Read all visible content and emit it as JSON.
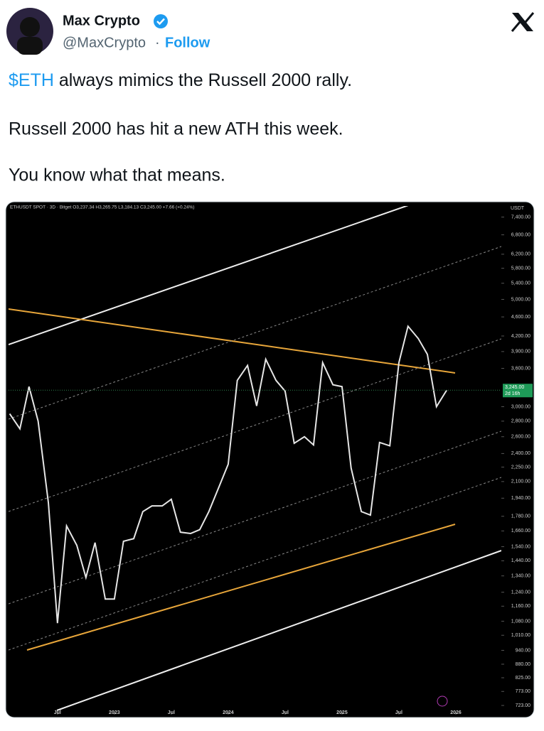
{
  "tweet": {
    "author_name": "Max Crypto",
    "handle": "@MaxCrypto",
    "separator": "·",
    "follow": "Follow",
    "text": [
      {
        "cashtag": "$ETH",
        "rest": "always mimics the Russell 2000 rally."
      },
      {
        "rest": "Russell 2000 has hit a new ATH this week."
      },
      {
        "rest": "You know what that means."
      }
    ]
  },
  "chart_data": {
    "type": "line",
    "title": "ETHUSDT SPOT · 3D · Bitget O3,237.34 H3,265.75 L3,184.13 C3,245.00 +7.66 (+0.24%)",
    "y_unit": "USDT",
    "log_scale": true,
    "color": "#e6e6e6",
    "x": [
      2022.08,
      2022.17,
      2022.25,
      2022.33,
      2022.42,
      2022.5,
      2022.58,
      2022.67,
      2022.75,
      2022.83,
      2022.92,
      2023.0,
      2023.08,
      2023.17,
      2023.25,
      2023.33,
      2023.42,
      2023.5,
      2023.58,
      2023.67,
      2023.75,
      2023.83,
      2023.92,
      2024.0,
      2024.08,
      2024.17,
      2024.25,
      2024.33,
      2024.42,
      2024.5,
      2024.58,
      2024.67,
      2024.75,
      2024.83,
      2024.92,
      2025.0,
      2025.08,
      2025.17,
      2025.25,
      2025.33,
      2025.42,
      2025.5,
      2025.58,
      2025.67,
      2025.75,
      2025.83,
      2025.92
    ],
    "values": [
      2900,
      2700,
      3300,
      2800,
      1900,
      1070,
      1700,
      1550,
      1330,
      1570,
      1200,
      1200,
      1580,
      1600,
      1820,
      1870,
      1870,
      1930,
      1650,
      1640,
      1670,
      1820,
      2050,
      2280,
      3400,
      3650,
      3010,
      3760,
      3400,
      3230,
      2520,
      2600,
      2500,
      3700,
      3330,
      3300,
      2240,
      1820,
      1790,
      2530,
      2490,
      3700,
      4400,
      4150,
      3850,
      3000,
      3245
    ],
    "xlim": [
      2022.07,
      2026.4
    ],
    "ylim": [
      692,
      7800
    ],
    "xticks": [
      {
        "value": 2022.5,
        "label": "Jul"
      },
      2023,
      {
        "value": 2023.5,
        "label": "Jul"
      },
      2024,
      {
        "value": 2024.5,
        "label": "Jul"
      },
      2025,
      {
        "value": 2025.5,
        "label": "Jul"
      },
      2026
    ],
    "yticks": [
      {
        "value": 7400,
        "label": "7,400.00"
      },
      {
        "value": 6800,
        "label": "6,800.00"
      },
      {
        "value": 6200,
        "label": "6,200.00"
      },
      {
        "value": 5800,
        "label": "5,800.00"
      },
      {
        "value": 5400,
        "label": "5,400.00"
      },
      {
        "value": 5000,
        "label": "5,000.00"
      },
      {
        "value": 4600,
        "label": "4,600.00"
      },
      {
        "value": 4200,
        "label": "4,200.00"
      },
      {
        "value": 3900,
        "label": "3,900.00"
      },
      {
        "value": 3600,
        "label": "3,600.00"
      },
      {
        "value": 3000,
        "label": "3,000.00"
      },
      {
        "value": 2800,
        "label": "2,800.00"
      },
      {
        "value": 2600,
        "label": "2,600.00"
      },
      {
        "value": 2400,
        "label": "2,400.00"
      },
      {
        "value": 2250,
        "label": "2,250.00"
      },
      {
        "value": 2100,
        "label": "2,100.00"
      },
      {
        "value": 1940,
        "label": "1,940.00"
      },
      {
        "value": 1780,
        "label": "1,780.00"
      },
      {
        "value": 1660,
        "label": "1,660.00"
      },
      {
        "value": 1540,
        "label": "1,540.00"
      },
      {
        "value": 1440,
        "label": "1,440.00"
      },
      {
        "value": 1340,
        "label": "1,340.00"
      },
      {
        "value": 1240,
        "label": "1,240.00"
      },
      {
        "value": 1160,
        "label": "1,160.00"
      },
      {
        "value": 1080,
        "label": "1,080.00"
      },
      {
        "value": 1010,
        "label": "1,010.00"
      },
      {
        "value": 940,
        "label": "940.00"
      },
      {
        "value": 880,
        "label": "880.00"
      },
      {
        "value": 825,
        "label": "825.00"
      },
      {
        "value": 773,
        "label": "773.00"
      },
      {
        "value": 723,
        "label": "723.00"
      }
    ],
    "price_label": "3,245.00",
    "countdown": "2d 16h"
  }
}
